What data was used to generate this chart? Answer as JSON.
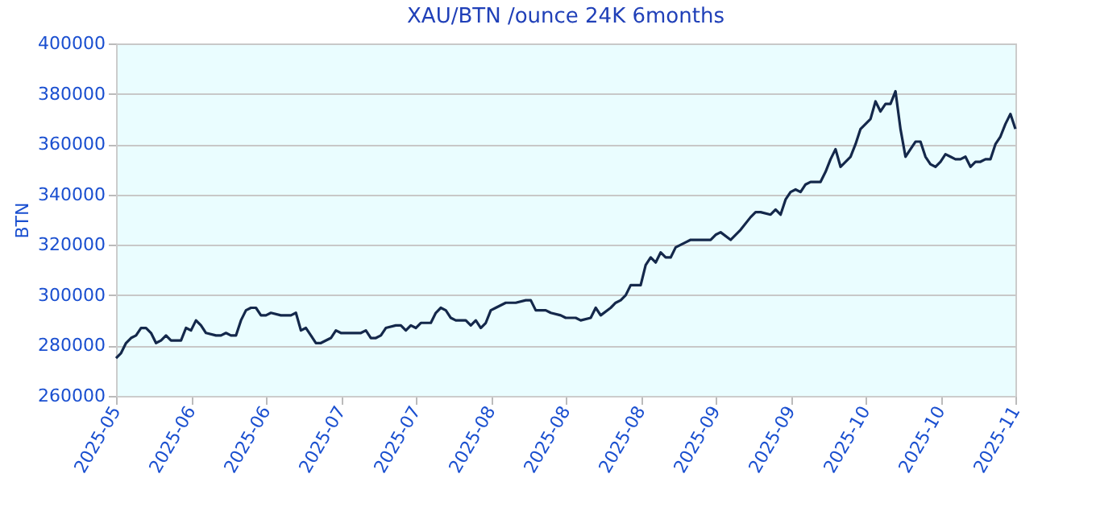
{
  "chart_data": {
    "type": "line",
    "title": "XAU/BTN /ounce 24K 6months",
    "ylabel": "BTN",
    "x": [
      "2025-05-18",
      "2025-05-19",
      "2025-05-20",
      "2025-05-21",
      "2025-05-22",
      "2025-05-23",
      "2025-05-24",
      "2025-05-25",
      "2025-05-26",
      "2025-05-27",
      "2025-05-28",
      "2025-05-29",
      "2025-05-31",
      "2025-06-01",
      "2025-06-02",
      "2025-06-03",
      "2025-06-04",
      "2025-06-05",
      "2025-06-07",
      "2025-06-08",
      "2025-06-09",
      "2025-06-10",
      "2025-06-11",
      "2025-06-12",
      "2025-06-13",
      "2025-06-14",
      "2025-06-15",
      "2025-06-16",
      "2025-06-17",
      "2025-06-18",
      "2025-06-20",
      "2025-06-22",
      "2025-06-23",
      "2025-06-24",
      "2025-06-25",
      "2025-06-26",
      "2025-06-27",
      "2025-06-28",
      "2025-06-30",
      "2025-07-01",
      "2025-07-02",
      "2025-07-04",
      "2025-07-06",
      "2025-07-07",
      "2025-07-08",
      "2025-07-09",
      "2025-07-10",
      "2025-07-11",
      "2025-07-13",
      "2025-07-14",
      "2025-07-15",
      "2025-07-16",
      "2025-07-17",
      "2025-07-18",
      "2025-07-20",
      "2025-07-21",
      "2025-07-22",
      "2025-07-23",
      "2025-07-24",
      "2025-07-25",
      "2025-07-27",
      "2025-07-28",
      "2025-07-29",
      "2025-07-30",
      "2025-07-31",
      "2025-08-01",
      "2025-08-02",
      "2025-08-04",
      "2025-08-06",
      "2025-08-08",
      "2025-08-09",
      "2025-08-10",
      "2025-08-12",
      "2025-08-13",
      "2025-08-15",
      "2025-08-16",
      "2025-08-18",
      "2025-08-19",
      "2025-08-21",
      "2025-08-22",
      "2025-08-23",
      "2025-08-25",
      "2025-08-26",
      "2025-08-27",
      "2025-08-28",
      "2025-08-29",
      "2025-08-31",
      "2025-09-01",
      "2025-09-02",
      "2025-09-03",
      "2025-09-04",
      "2025-09-05",
      "2025-09-06",
      "2025-09-07",
      "2025-09-09",
      "2025-09-10",
      "2025-09-12",
      "2025-09-14",
      "2025-09-15",
      "2025-09-16",
      "2025-09-18",
      "2025-09-19",
      "2025-09-20",
      "2025-09-22",
      "2025-09-23",
      "2025-09-24",
      "2025-09-26",
      "2025-09-27",
      "2025-09-28",
      "2025-09-29",
      "2025-09-30",
      "2025-10-01",
      "2025-10-02",
      "2025-10-03",
      "2025-10-04",
      "2025-10-06",
      "2025-10-07",
      "2025-10-08",
      "2025-10-09",
      "2025-10-10",
      "2025-10-11",
      "2025-10-12",
      "2025-10-13",
      "2025-10-14",
      "2025-10-15",
      "2025-10-16",
      "2025-10-17",
      "2025-10-18",
      "2025-10-19",
      "2025-10-20",
      "2025-10-21",
      "2025-10-22",
      "2025-10-23",
      "2025-10-24",
      "2025-10-25",
      "2025-10-26",
      "2025-10-27",
      "2025-10-28",
      "2025-10-29",
      "2025-10-30",
      "2025-10-31",
      "2025-11-01",
      "2025-11-02",
      "2025-11-03",
      "2025-11-04",
      "2025-11-05",
      "2025-11-06",
      "2025-11-07",
      "2025-11-08",
      "2025-11-09",
      "2025-11-10",
      "2025-11-11",
      "2025-11-12",
      "2025-11-13",
      "2025-11-14"
    ],
    "series": [
      {
        "color": "#14284b",
        "values": [
          275000,
          277000,
          281000,
          283000,
          284000,
          287000,
          287000,
          285000,
          281000,
          282000,
          284000,
          282000,
          282000,
          287000,
          286000,
          290000,
          288000,
          285000,
          284000,
          284000,
          285000,
          284000,
          284000,
          290000,
          294000,
          295000,
          295000,
          292000,
          292000,
          293000,
          292000,
          292000,
          293000,
          286000,
          287000,
          284000,
          281000,
          281000,
          283000,
          286000,
          285000,
          285000,
          285000,
          286000,
          283000,
          283000,
          284000,
          287000,
          288000,
          288000,
          286000,
          288000,
          287000,
          289000,
          289000,
          293000,
          295000,
          294000,
          291000,
          290000,
          290000,
          288000,
          290000,
          287000,
          289000,
          294000,
          295000,
          297000,
          297000,
          298000,
          298000,
          294000,
          294000,
          293000,
          292000,
          291000,
          291000,
          290000,
          291000,
          295000,
          292000,
          295000,
          297000,
          298000,
          300000,
          304000,
          304000,
          312000,
          315000,
          313000,
          317000,
          315000,
          315000,
          319000,
          321000,
          322000,
          322000,
          322000,
          324000,
          325000,
          322000,
          324000,
          326000,
          331000,
          333000,
          333000,
          332000,
          334000,
          332000,
          338000,
          341000,
          342000,
          341000,
          344000,
          345000,
          345000,
          349000,
          354000,
          358000,
          351000,
          353000,
          355000,
          360000,
          366000,
          368000,
          370000,
          377000,
          373000,
          376000,
          376000,
          381000,
          366000,
          355000,
          358000,
          361000,
          361000,
          355000,
          352000,
          351000,
          353000,
          356000,
          355000,
          354000,
          354000,
          355000,
          351000,
          353000,
          353000,
          354000,
          354000,
          360000,
          363000,
          368000,
          372000,
          366000
        ]
      }
    ],
    "xlim": [
      "2025-05-18",
      "2025-11-14"
    ],
    "xticks": [
      {
        "value": "2025-05-18",
        "label": "2025-05"
      },
      {
        "value": "2025-06-02",
        "label": "2025-06"
      },
      {
        "value": "2025-06-17",
        "label": "2025-06"
      },
      {
        "value": "2025-07-02",
        "label": "2025-07"
      },
      {
        "value": "2025-07-17",
        "label": "2025-07"
      },
      {
        "value": "2025-08-01",
        "label": "2025-08"
      },
      {
        "value": "2025-08-16",
        "label": "2025-08"
      },
      {
        "value": "2025-08-31",
        "label": "2025-08"
      },
      {
        "value": "2025-09-15",
        "label": "2025-09"
      },
      {
        "value": "2025-09-30",
        "label": "2025-09"
      },
      {
        "value": "2025-10-15",
        "label": "2025-10"
      },
      {
        "value": "2025-10-30",
        "label": "2025-10"
      },
      {
        "value": "2025-11-14",
        "label": "2025-11"
      }
    ],
    "ylim": [
      260000,
      400000
    ],
    "yticks": [
      260000,
      280000,
      300000,
      320000,
      340000,
      360000,
      380000,
      400000
    ],
    "grid": "y",
    "legend": false,
    "marker": "none",
    "line_style": "solid"
  }
}
